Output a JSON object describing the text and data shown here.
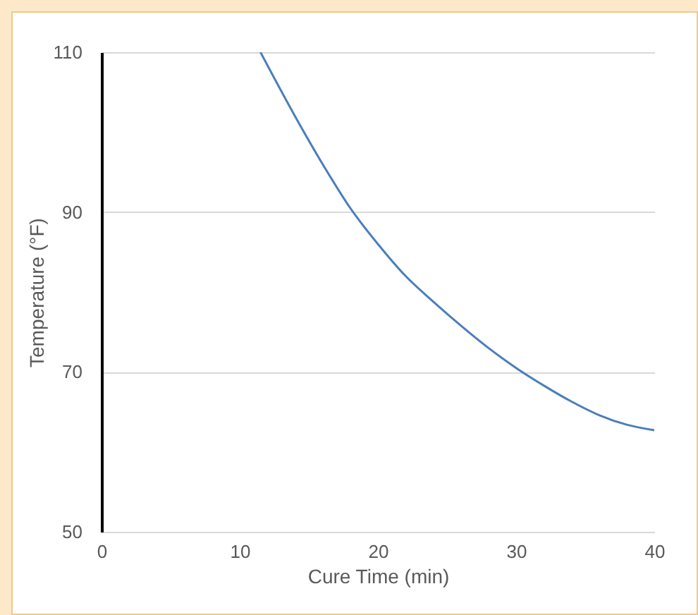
{
  "chart_data": {
    "type": "line",
    "xlabel": "Cure Time (min)",
    "ylabel": "Temperature (°F)",
    "x": [
      11.5,
      14,
      16,
      18,
      20,
      22,
      24,
      26,
      28,
      30,
      32,
      34,
      36,
      38,
      40
    ],
    "series": [
      {
        "color": "#4a7ebb",
        "values": [
          110,
          102,
          96,
          90.5,
          86,
          82,
          78.8,
          75.8,
          73,
          70.5,
          68.3,
          66.3,
          64.6,
          63.4,
          62.7
        ]
      }
    ],
    "xlim": [
      0,
      40
    ],
    "xticks": [
      0,
      10,
      20,
      30,
      40
    ],
    "ylim": [
      50,
      110
    ],
    "yticks": [
      50,
      70,
      90,
      110
    ],
    "grid": "y",
    "marker": "none",
    "line_style": "solid",
    "legend": false
  }
}
